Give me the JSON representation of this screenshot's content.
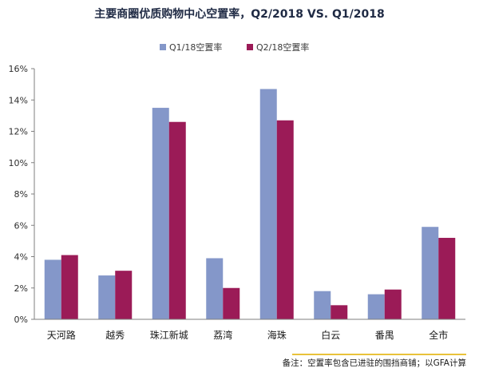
{
  "chart_data": {
    "type": "bar",
    "title": "主要商圈优质购物中心空置率，Q2/2018 VS. Q1/2018",
    "categories": [
      "天河路",
      "越秀",
      "珠江新城",
      "荔湾",
      "海珠",
      "白云",
      "番禺",
      "全市"
    ],
    "series": [
      {
        "name": "Q1/18空置率",
        "color": "#8497c9",
        "values": [
          3.8,
          2.8,
          13.5,
          3.9,
          14.7,
          1.8,
          1.6,
          5.9
        ]
      },
      {
        "name": "Q2/18空置率",
        "color": "#9b1b57",
        "values": [
          4.1,
          3.1,
          12.6,
          2.0,
          12.7,
          0.9,
          1.9,
          5.2
        ]
      }
    ],
    "y_ticks": [
      "0%",
      "2%",
      "4%",
      "6%",
      "8%",
      "10%",
      "12%",
      "14%",
      "16%"
    ],
    "ylim": [
      0,
      16
    ],
    "grid": false,
    "legend_position": "top-center",
    "note": "备注：空置率包含已进驻的围挡商铺；以GFA计算"
  }
}
